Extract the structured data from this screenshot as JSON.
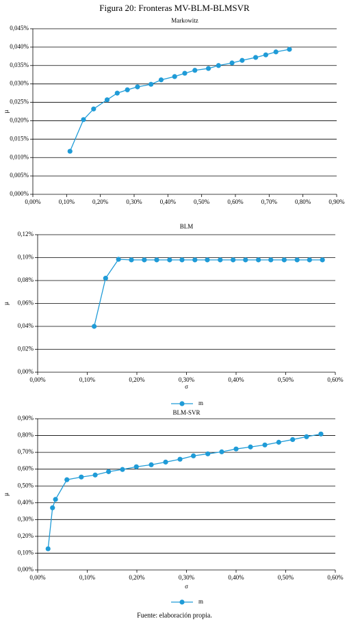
{
  "title": "Figura 20: Fronteras MV-BLM-BLMSVR",
  "source": "Fuente: elaboración propia.",
  "chart_data": [
    {
      "type": "line",
      "title": "Markowitz",
      "ylabel": "µ",
      "grid": true,
      "x": [
        0.11,
        0.15,
        0.18,
        0.22,
        0.25,
        0.28,
        0.31,
        0.35,
        0.38,
        0.42,
        0.45,
        0.48,
        0.52,
        0.55,
        0.59,
        0.62,
        0.66,
        0.69,
        0.72,
        0.76
      ],
      "series": [
        {
          "color": "#1f9bd7",
          "values": [
            0.0117,
            0.0203,
            0.0232,
            0.0257,
            0.0275,
            0.0284,
            0.0292,
            0.0299,
            0.0311,
            0.032,
            0.0329,
            0.0337,
            0.0342,
            0.035,
            0.0357,
            0.0364,
            0.0372,
            0.0379,
            0.0387,
            0.0394
          ]
        }
      ],
      "xlim": [
        0,
        0.9
      ],
      "ylim": [
        0,
        0.045
      ],
      "xticks": [
        {
          "value": 0,
          "label": "0,00%"
        },
        {
          "value": 0.1,
          "label": "0,10%"
        },
        {
          "value": 0.2,
          "label": "0,20%"
        },
        {
          "value": 0.3,
          "label": "0,30%"
        },
        {
          "value": 0.4,
          "label": "0,40%"
        },
        {
          "value": 0.5,
          "label": "0,50%"
        },
        {
          "value": 0.6,
          "label": "0,60%"
        },
        {
          "value": 0.7,
          "label": "0,70%"
        },
        {
          "value": 0.8,
          "label": "0,80%"
        },
        {
          "value": 0.9,
          "label": "0,90%"
        }
      ],
      "yticks": [
        {
          "value": 0,
          "label": "0,000%"
        },
        {
          "value": 0.005,
          "label": "0,005%"
        },
        {
          "value": 0.01,
          "label": "0,010%"
        },
        {
          "value": 0.015,
          "label": "0,015%"
        },
        {
          "value": 0.02,
          "label": "0,020%"
        },
        {
          "value": 0.025,
          "label": "0,025%"
        },
        {
          "value": 0.03,
          "label": "0,030%"
        },
        {
          "value": 0.035,
          "label": "0,035%"
        },
        {
          "value": 0.04,
          "label": "0,040%"
        },
        {
          "value": 0.045,
          "label": "0,045%"
        }
      ]
    },
    {
      "type": "line",
      "title": "BLM",
      "xlabel": "σ",
      "ylabel": "µ",
      "grid": true,
      "x": [
        0.114,
        0.137,
        0.163,
        0.189,
        0.215,
        0.24,
        0.266,
        0.291,
        0.317,
        0.342,
        0.368,
        0.394,
        0.419,
        0.445,
        0.47,
        0.497,
        0.523,
        0.548,
        0.574
      ],
      "series": [
        {
          "name": "m",
          "color": "#1f9bd7",
          "values": [
            0.04,
            0.082,
            0.0985,
            0.098,
            0.098,
            0.098,
            0.098,
            0.098,
            0.098,
            0.098,
            0.098,
            0.098,
            0.098,
            0.098,
            0.098,
            0.098,
            0.098,
            0.098,
            0.098
          ]
        }
      ],
      "xlim": [
        0,
        0.6
      ],
      "ylim": [
        0,
        0.12
      ],
      "xticks": [
        {
          "value": 0,
          "label": "0,00%"
        },
        {
          "value": 0.1,
          "label": "0,10%"
        },
        {
          "value": 0.2,
          "label": "0,20%"
        },
        {
          "value": 0.3,
          "label": "0,30%"
        },
        {
          "value": 0.4,
          "label": "0,40%"
        },
        {
          "value": 0.5,
          "label": "0,50%"
        },
        {
          "value": 0.6,
          "label": "0,60%"
        }
      ],
      "yticks": [
        {
          "value": 0,
          "label": "0,00%"
        },
        {
          "value": 0.02,
          "label": "0,02%"
        },
        {
          "value": 0.04,
          "label": "0,04%"
        },
        {
          "value": 0.06,
          "label": "0,06%"
        },
        {
          "value": 0.08,
          "label": "0,08%"
        },
        {
          "value": 0.1,
          "label": "0,10%"
        },
        {
          "value": 0.12,
          "label": "0,12%"
        }
      ]
    },
    {
      "type": "line",
      "title": "BLM-SVR",
      "xlabel": "σ",
      "ylabel": "µ",
      "grid": true,
      "x": [
        0.021,
        0.03,
        0.036,
        0.059,
        0.088,
        0.116,
        0.143,
        0.171,
        0.199,
        0.229,
        0.258,
        0.287,
        0.314,
        0.343,
        0.371,
        0.4,
        0.429,
        0.458,
        0.486,
        0.514,
        0.542,
        0.571
      ],
      "series": [
        {
          "name": "m",
          "color": "#1f9bd7",
          "values": [
            0.126,
            0.37,
            0.42,
            0.537,
            0.553,
            0.565,
            0.585,
            0.598,
            0.614,
            0.626,
            0.642,
            0.659,
            0.679,
            0.691,
            0.703,
            0.72,
            0.732,
            0.744,
            0.76,
            0.776,
            0.793,
            0.809
          ]
        }
      ],
      "xlim": [
        0,
        0.6
      ],
      "ylim": [
        0,
        0.9
      ],
      "xticks": [
        {
          "value": 0,
          "label": "0,00%"
        },
        {
          "value": 0.1,
          "label": "0,10%"
        },
        {
          "value": 0.2,
          "label": "0,20%"
        },
        {
          "value": 0.3,
          "label": "0,30%"
        },
        {
          "value": 0.4,
          "label": "0,40%"
        },
        {
          "value": 0.5,
          "label": "0,50%"
        },
        {
          "value": 0.6,
          "label": "0,60%"
        }
      ],
      "yticks": [
        {
          "value": 0,
          "label": "0,00%"
        },
        {
          "value": 0.1,
          "label": "0,10%"
        },
        {
          "value": 0.2,
          "label": "0,20%"
        },
        {
          "value": 0.3,
          "label": "0,30%"
        },
        {
          "value": 0.4,
          "label": "0,40%"
        },
        {
          "value": 0.5,
          "label": "0,50%"
        },
        {
          "value": 0.6,
          "label": "0,60%"
        },
        {
          "value": 0.7,
          "label": "0,70%"
        },
        {
          "value": 0.8,
          "label": "0,80%"
        },
        {
          "value": 0.9,
          "label": "0,90%"
        }
      ]
    }
  ]
}
